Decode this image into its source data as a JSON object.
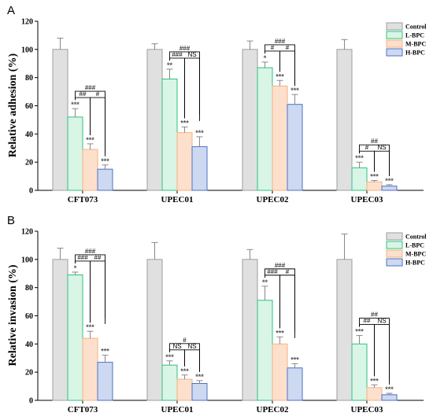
{
  "chart_data": [
    {
      "type": "bar",
      "panel_label": "A",
      "ylabel": "Relative adhesion (%)",
      "ylim": [
        0,
        120
      ],
      "yticks": [
        "0",
        "20",
        "40",
        "60",
        "80",
        "100",
        "120"
      ],
      "categories": [
        "CFT073",
        "UPEC01",
        "UPEC02",
        "UPEC03"
      ],
      "legend": {
        "position": "top-right",
        "entries": [
          "Control",
          "L-BPC",
          "M-BPC",
          "H-BPC"
        ]
      },
      "series": [
        {
          "name": "Control",
          "fill": "#e0e0e0",
          "stroke": "#9e9e9e",
          "values": [
            100,
            100,
            100,
            100
          ],
          "errors": [
            8,
            4,
            6,
            7
          ],
          "sig": [
            "",
            "",
            "",
            ""
          ]
        },
        {
          "name": "L-BPC",
          "fill": "#d9f5e6",
          "stroke": "#2ec27e",
          "values": [
            52,
            79,
            87,
            16
          ],
          "errors": [
            6,
            7,
            4,
            4
          ],
          "sig": [
            "***",
            "**",
            "*",
            "***"
          ]
        },
        {
          "name": "M-BPC",
          "fill": "#fde0cc",
          "stroke": "#f4b183",
          "values": [
            29,
            41,
            74,
            6
          ],
          "errors": [
            4,
            4,
            4,
            1
          ],
          "sig": [
            "***",
            "***",
            "***",
            "***"
          ]
        },
        {
          "name": "H-BPC",
          "fill": "#cdd9f0",
          "stroke": "#4f6fc4",
          "values": [
            15,
            31,
            61,
            3
          ],
          "errors": [
            3,
            7,
            7,
            1
          ],
          "sig": [
            "***",
            "***",
            "***",
            "***"
          ]
        }
      ],
      "comparisons": [
        {
          "category": 0,
          "from": 1,
          "to": 2,
          "label": "##",
          "level": 0
        },
        {
          "category": 0,
          "from": 2,
          "to": 3,
          "label": "#",
          "level": 0
        },
        {
          "category": 0,
          "from": 1,
          "to": 3,
          "label": "###",
          "level": 1
        },
        {
          "category": 1,
          "from": 1,
          "to": 2,
          "label": "###",
          "level": 0
        },
        {
          "category": 1,
          "from": 2,
          "to": 3,
          "label": "NS",
          "level": 0
        },
        {
          "category": 1,
          "from": 1,
          "to": 3,
          "label": "###",
          "level": 1
        },
        {
          "category": 2,
          "from": 1,
          "to": 2,
          "label": "#",
          "level": 0
        },
        {
          "category": 2,
          "from": 2,
          "to": 3,
          "label": "#",
          "level": 0
        },
        {
          "category": 2,
          "from": 1,
          "to": 3,
          "label": "###",
          "level": 1
        },
        {
          "category": 3,
          "from": 1,
          "to": 2,
          "label": "#",
          "level": 0
        },
        {
          "category": 3,
          "from": 2,
          "to": 3,
          "label": "NS",
          "level": 0
        },
        {
          "category": 3,
          "from": 1,
          "to": 3,
          "label": "##",
          "level": 1
        }
      ]
    },
    {
      "type": "bar",
      "panel_label": "B",
      "ylabel": "Relative invasion (%)",
      "ylim": [
        0,
        120
      ],
      "yticks": [
        "0",
        "20",
        "40",
        "60",
        "80",
        "100",
        "120"
      ],
      "categories": [
        "CFT073",
        "UPEC01",
        "UPEC02",
        "UPEC03"
      ],
      "legend": {
        "position": "top-right",
        "entries": [
          "Control",
          "L-BPC",
          "M-BPC",
          "H-BPC"
        ]
      },
      "series": [
        {
          "name": "Control",
          "fill": "#e0e0e0",
          "stroke": "#9e9e9e",
          "values": [
            100,
            100,
            100,
            100
          ],
          "errors": [
            8,
            12,
            7,
            18
          ],
          "sig": [
            "",
            "",
            "",
            ""
          ]
        },
        {
          "name": "L-BPC",
          "fill": "#d9f5e6",
          "stroke": "#2ec27e",
          "values": [
            89,
            25,
            71,
            40
          ],
          "errors": [
            2,
            3,
            10,
            6
          ],
          "sig": [
            "*",
            "***",
            "**",
            "***"
          ]
        },
        {
          "name": "M-BPC",
          "fill": "#fde0cc",
          "stroke": "#f4b183",
          "values": [
            44,
            15,
            40,
            9
          ],
          "errors": [
            5,
            3,
            5,
            2
          ],
          "sig": [
            "***",
            "***",
            "***",
            "***"
          ]
        },
        {
          "name": "H-BPC",
          "fill": "#cdd9f0",
          "stroke": "#4f6fc4",
          "values": [
            27,
            12,
            23,
            4
          ],
          "errors": [
            5,
            2,
            3,
            1
          ],
          "sig": [
            "***",
            "***",
            "***",
            "***"
          ]
        }
      ],
      "comparisons": [
        {
          "category": 0,
          "from": 1,
          "to": 2,
          "label": "###",
          "level": 0
        },
        {
          "category": 0,
          "from": 2,
          "to": 3,
          "label": "##",
          "level": 0
        },
        {
          "category": 0,
          "from": 1,
          "to": 3,
          "label": "###",
          "level": 1
        },
        {
          "category": 1,
          "from": 1,
          "to": 2,
          "label": "NS",
          "level": 0
        },
        {
          "category": 1,
          "from": 2,
          "to": 3,
          "label": "NS",
          "level": 0
        },
        {
          "category": 1,
          "from": 1,
          "to": 3,
          "label": "#",
          "level": 1
        },
        {
          "category": 2,
          "from": 1,
          "to": 2,
          "label": "###",
          "level": 0
        },
        {
          "category": 2,
          "from": 2,
          "to": 3,
          "label": "#",
          "level": 0
        },
        {
          "category": 2,
          "from": 1,
          "to": 3,
          "label": "###",
          "level": 1
        },
        {
          "category": 3,
          "from": 1,
          "to": 2,
          "label": "##",
          "level": 0
        },
        {
          "category": 3,
          "from": 2,
          "to": 3,
          "label": "NS",
          "level": 0
        },
        {
          "category": 3,
          "from": 1,
          "to": 3,
          "label": "##",
          "level": 1
        }
      ]
    }
  ]
}
